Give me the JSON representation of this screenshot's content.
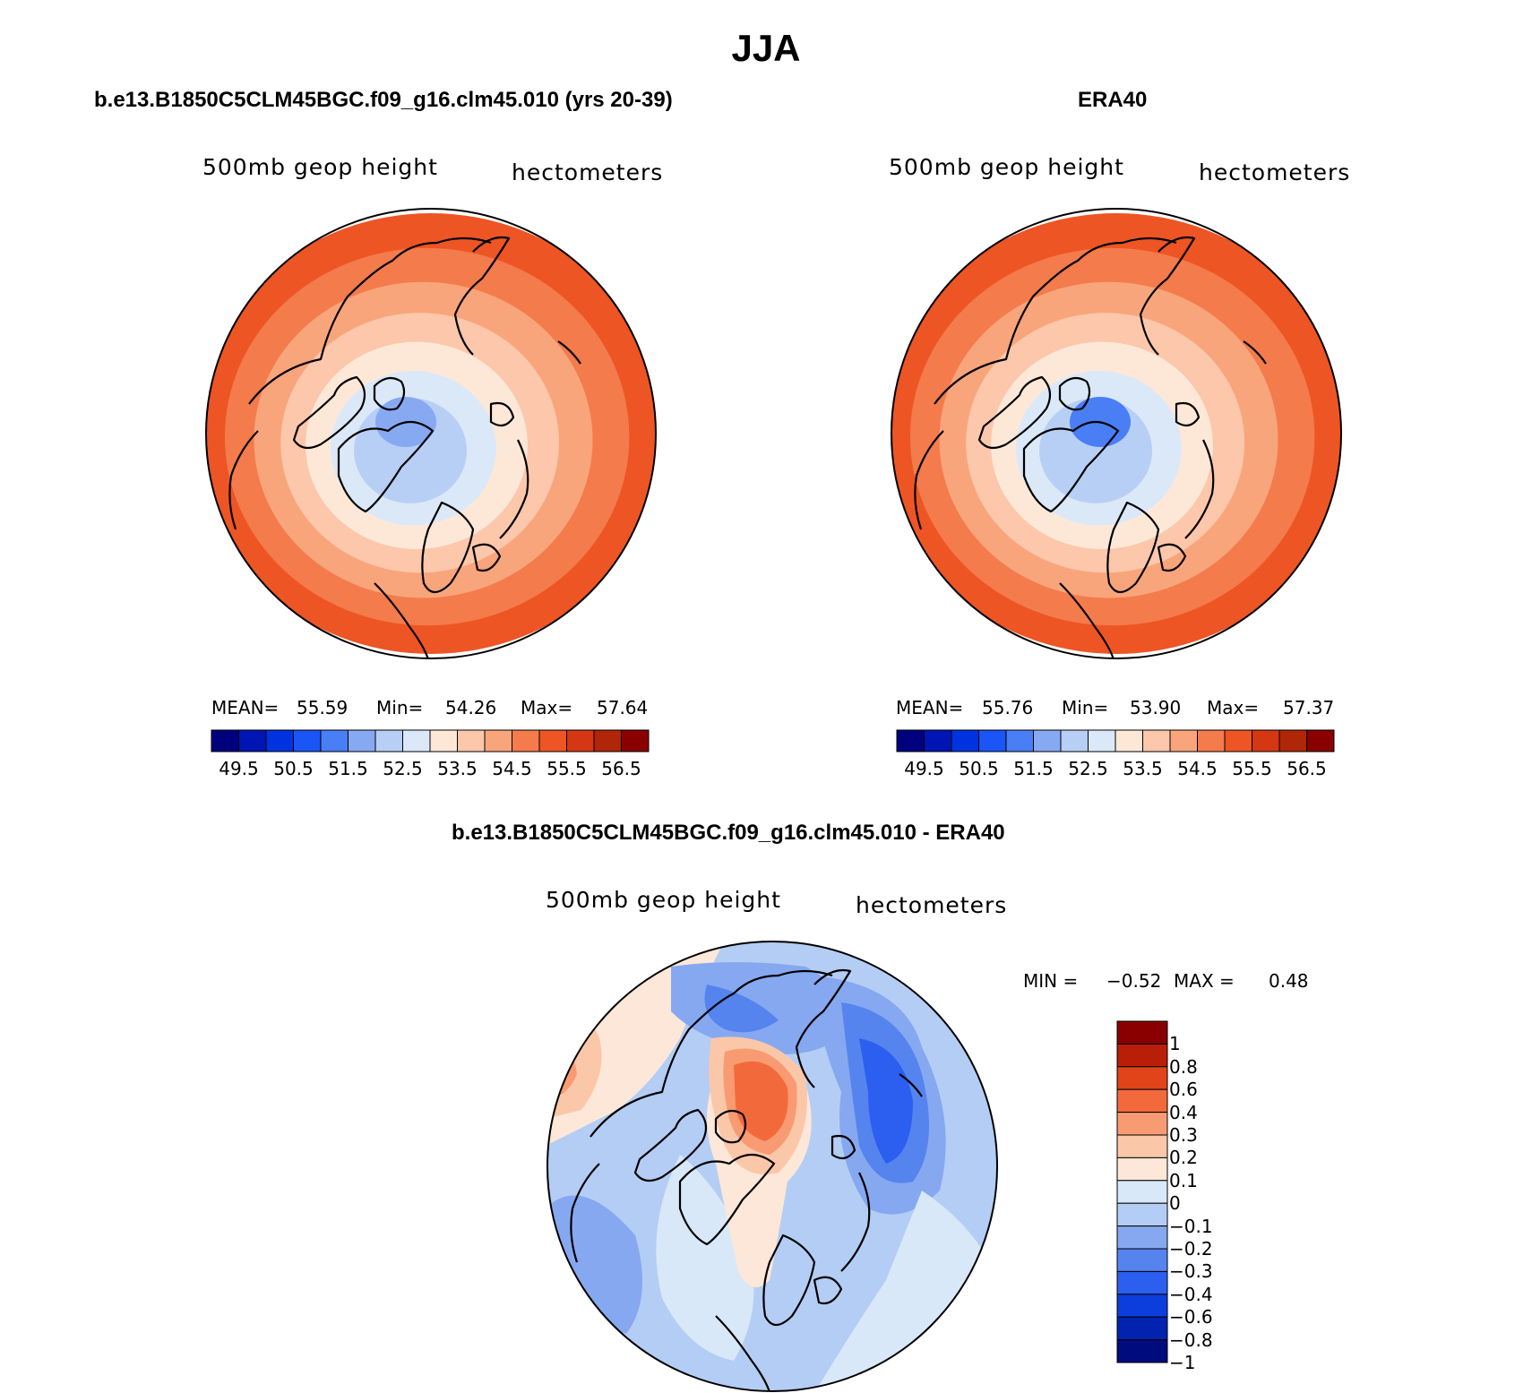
{
  "title": "JJA",
  "panels": [
    {
      "id": "model",
      "title": "b.e13.B1850C5CLM45BGC.f09_g16.clm45.010 (yrs 20-39)",
      "variable": "500mb geop height",
      "units": "hectometers",
      "stats": {
        "mean_label": "MEAN=",
        "mean": "55.59",
        "min_label": "Min=",
        "min": "54.26",
        "max_label": "Max=",
        "max": "57.64"
      },
      "fill_levels": [
        12,
        11,
        10,
        9,
        8,
        7,
        6
      ],
      "center_level": 5
    },
    {
      "id": "obs",
      "title": "ERA40",
      "variable": "500mb geop height",
      "units": "hectometers",
      "stats": {
        "mean_label": "MEAN=",
        "mean": "55.76",
        "min_label": "Min=",
        "min": "53.90",
        "max_label": "Max=",
        "max": "57.37"
      },
      "fill_levels": [
        12,
        11,
        10,
        9,
        8,
        7,
        6
      ],
      "center_level": 4
    }
  ],
  "abs_colorbar": {
    "colors": [
      "#00007f",
      "#0016b4",
      "#0033e0",
      "#1a55f5",
      "#4a7ef5",
      "#87a9f2",
      "#b8cff5",
      "#dbe8f8",
      "#fde8d8",
      "#fcc7ab",
      "#f9a57c",
      "#f47b4b",
      "#ee5524",
      "#d43712",
      "#b02608",
      "#8a0000"
    ],
    "labels": [
      "49.5",
      "50.5",
      "51.5",
      "52.5",
      "53.5",
      "54.5",
      "55.5",
      "56.5"
    ]
  },
  "diff": {
    "title": "b.e13.B1850C5CLM45BGC.f09_g16.clm45.010 - ERA40",
    "variable": "500mb geop height",
    "units": "hectometers",
    "min_label": "MIN =",
    "min": "−0.52",
    "max_label": "MAX =",
    "max": "0.48",
    "colorbar": {
      "colors": [
        "#8a0000",
        "#b81e08",
        "#e04418",
        "#f26a3c",
        "#f99b72",
        "#fbc7a9",
        "#fde7d8",
        "#d8e8f8",
        "#b4cdf4",
        "#86a8f0",
        "#5584ef",
        "#2c5ff0",
        "#0c3ede",
        "#0222b0",
        "#000b7e"
      ],
      "labels": [
        "1",
        "0.8",
        "0.6",
        "0.4",
        "0.3",
        "0.2",
        "0.1",
        "0",
        "−0.1",
        "−0.2",
        "−0.3",
        "−0.4",
        "−0.6",
        "−0.8",
        "−1"
      ]
    }
  }
}
